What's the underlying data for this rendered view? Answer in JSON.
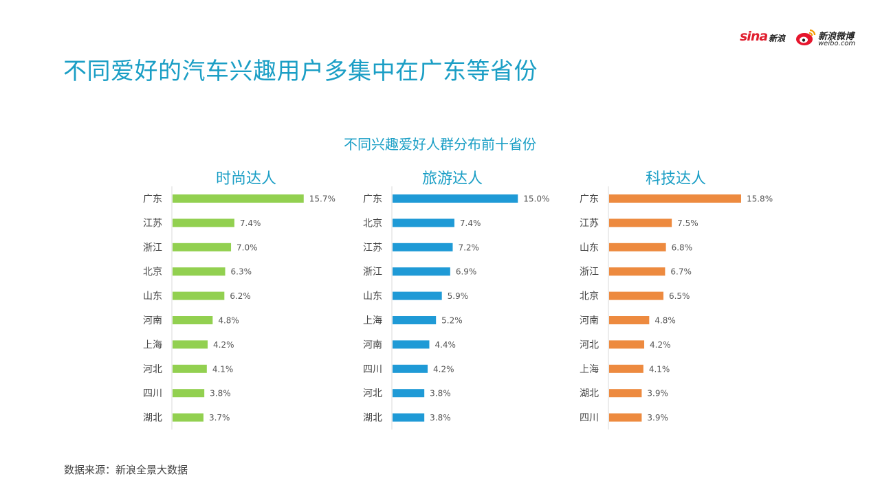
{
  "title": "不同爱好的汽车兴趣用户多集中在广东等省份",
  "logos": {
    "sina": "sina",
    "sina_cn": "新浪",
    "weibo_cn": "新浪微博",
    "weibo_en": "weibo.com"
  },
  "footer": "数据来源：新浪全景大数据",
  "chart_data": [
    {
      "type": "bar",
      "orientation": "horizontal",
      "overall_title": "不同兴趣爱好人群分布前十省份",
      "title": "时尚达人",
      "color": "#92d050",
      "categories": [
        "广东",
        "江苏",
        "浙江",
        "北京",
        "山东",
        "河南",
        "上海",
        "河北",
        "四川",
        "湖北"
      ],
      "values": [
        15.7,
        7.4,
        7.0,
        6.3,
        6.2,
        4.8,
        4.2,
        4.1,
        3.8,
        3.7
      ],
      "labels": [
        "15.7%",
        "7.4%",
        "7.0%",
        "6.3%",
        "6.2%",
        "4.8%",
        "4.2%",
        "4.1%",
        "3.8%",
        "3.7%"
      ],
      "xlim": [
        0,
        16
      ]
    },
    {
      "type": "bar",
      "orientation": "horizontal",
      "title": "旅游达人",
      "color": "#1f9ad6",
      "categories": [
        "广东",
        "北京",
        "江苏",
        "浙江",
        "山东",
        "上海",
        "河南",
        "四川",
        "河北",
        "湖北"
      ],
      "values": [
        15.0,
        7.4,
        7.2,
        6.9,
        5.9,
        5.2,
        4.4,
        4.2,
        3.8,
        3.8
      ],
      "labels": [
        "15.0%",
        "7.4%",
        "7.2%",
        "6.9%",
        "5.9%",
        "5.2%",
        "4.4%",
        "4.2%",
        "3.8%",
        "3.8%"
      ],
      "xlim": [
        0,
        16
      ]
    },
    {
      "type": "bar",
      "orientation": "horizontal",
      "title": "科技达人",
      "color": "#ed8a3f",
      "categories": [
        "广东",
        "江苏",
        "山东",
        "浙江",
        "北京",
        "河南",
        "河北",
        "上海",
        "湖北",
        "四川"
      ],
      "values": [
        15.8,
        7.5,
        6.8,
        6.7,
        6.5,
        4.8,
        4.2,
        4.1,
        3.9,
        3.9
      ],
      "labels": [
        "15.8%",
        "7.5%",
        "6.8%",
        "6.7%",
        "6.5%",
        "4.8%",
        "4.2%",
        "4.1%",
        "3.9%",
        "3.9%"
      ],
      "xlim": [
        0,
        16
      ]
    }
  ]
}
